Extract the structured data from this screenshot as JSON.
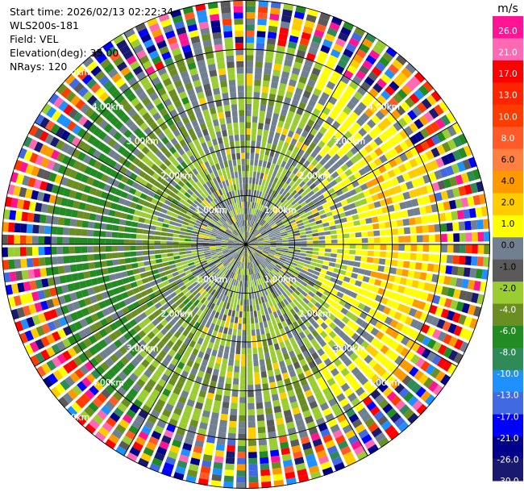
{
  "info": {
    "start_time": "Start time: 2026/02/13 02:22:34",
    "instrument": "WLS200s-181",
    "field": "Field: VEL",
    "elevation": "Elevation(deg): 35.00",
    "nrays": "NRays: 120"
  },
  "colorbar": {
    "unit": "m/s",
    "ticks": [
      "26.0",
      "21.0",
      "17.0",
      "13.0",
      "10.0",
      "8.0",
      "6.0",
      "4.0",
      "2.0",
      "1.0",
      "0.0",
      "-1.0",
      "-2.0",
      "-4.0",
      "-6.0",
      "-8.0",
      "-10.0",
      "-13.0",
      "-17.0",
      "-21.0",
      "-26.0",
      "-30.0"
    ],
    "colors": [
      "#ff1493",
      "#ff69b4",
      "#ff0000",
      "#ff2400",
      "#ff3c00",
      "#ff5a28",
      "#ff8040",
      "#ff9900",
      "#ffcc00",
      "#ffff00",
      "#708090",
      "#5a5a5a",
      "#9acd32",
      "#6b8e23",
      "#228b22",
      "#2e8b57",
      "#1e90ff",
      "#4169e1",
      "#0000ff",
      "#00008b",
      "#191970"
    ]
  },
  "chart_data": {
    "type": "ppi",
    "field": "VEL",
    "units": "m/s",
    "elevation_deg": 35.0,
    "n_rays": 120,
    "range_rings_km": [
      1,
      2,
      3,
      4,
      5
    ],
    "ring_labels": [
      {
        "angle_deg": 315,
        "labels": [
          "1.00km",
          "2.00km",
          "3.00km",
          "4.00km",
          "5.00km"
        ]
      },
      {
        "angle_deg": 45,
        "labels": [
          "1.00km",
          "2.00km",
          "3.00km",
          "4.00km"
        ]
      },
      {
        "angle_deg": 135,
        "labels": [
          "1.00km",
          "2.00km",
          "3.00km",
          "4.00km"
        ]
      },
      {
        "angle_deg": 225,
        "labels": [
          "1.00km",
          "2.00km",
          "3.00km",
          "4.00km",
          "5.00km"
        ]
      }
    ],
    "velocity_pattern": {
      "description": "radial velocity pattern",
      "outbound_sector_center_deg": 90,
      "inbound_sector_center_deg": 270,
      "near_range_value": -1.0,
      "mid_range_inbound": -4.0,
      "mid_range_outbound": 4.0,
      "far_range": "noise"
    }
  }
}
